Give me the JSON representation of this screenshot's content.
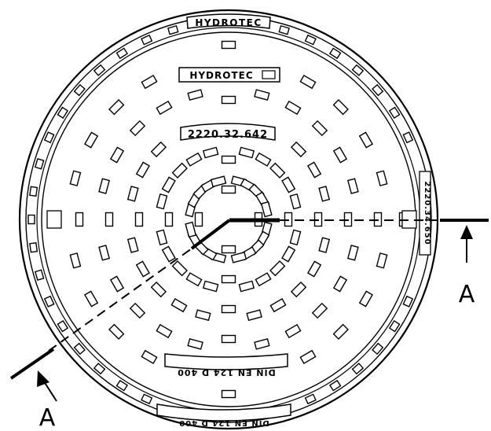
{
  "drawing": {
    "brand_top": "HYDROTEC",
    "brand_plate": "HYDROTEC",
    "article_number_plate": "2220.32.642",
    "article_number_rim": "2220.34.650",
    "norm_plate": "DIN EN 124 D 400",
    "norm_rim": "DIN EN 124 D 400",
    "section_label_left": "A",
    "section_label_right": "A"
  },
  "colors": {
    "ink": "#000000",
    "background": "#ffffff"
  }
}
